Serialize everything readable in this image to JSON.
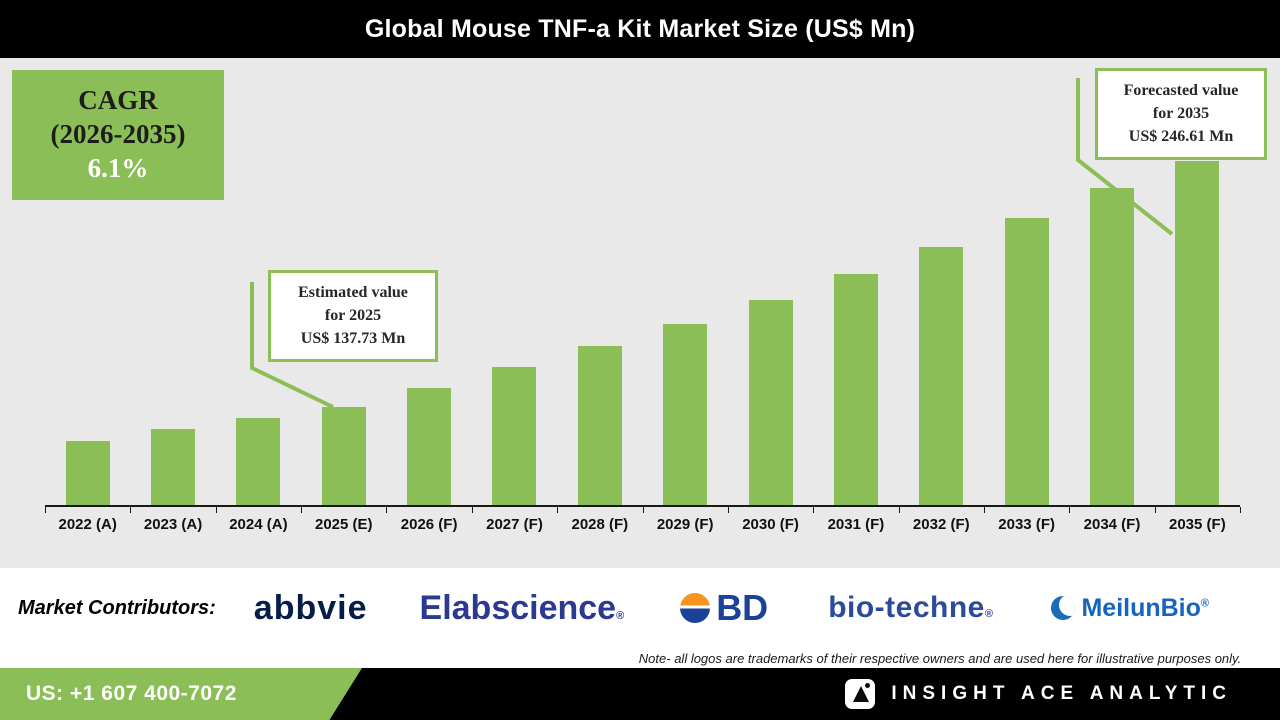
{
  "header": {
    "title": "Global Mouse TNF-a Kit Market Size (US$ Mn)"
  },
  "cagr_box": {
    "line1": "CAGR",
    "line2": "(2026-2035)",
    "value": "6.1%"
  },
  "callouts": {
    "estimated": {
      "line1": "Estimated value",
      "line2": "for 2025",
      "line3": "US$ 137.73 Mn"
    },
    "forecasted": {
      "line1": "Forecasted value",
      "line2": "for 2035",
      "line3": "US$ 246.61 Mn"
    }
  },
  "chart_data": {
    "type": "bar",
    "title": "Global Mouse TNF-a Kit Market Size (US$ Mn)",
    "categories": [
      "2022 (A)",
      "2023 (A)",
      "2024 (A)",
      "2025 (E)",
      "2026 (F)",
      "2027 (F)",
      "2028 (F)",
      "2029 (F)",
      "2030 (F)",
      "2031 (F)",
      "2032 (F)",
      "2033 (F)",
      "2034 (F)",
      "2035 (F)"
    ],
    "values": [
      122.2,
      127.9,
      132.8,
      137.73,
      146.13,
      155.04,
      164.5,
      174.53,
      185.18,
      196.47,
      208.45,
      221.17,
      234.66,
      246.61
    ],
    "xlabel": "",
    "ylabel": "US$ Mn",
    "ylim": [
      94,
      256
    ],
    "bar_color": "#8cbe58",
    "grid": false,
    "legend": false,
    "cagr": "6.1%",
    "cagr_period": "2026-2035",
    "annotations": [
      {
        "target": "2025 (E)",
        "text": "Estimated value for 2025 US$ 137.73 Mn",
        "value": 137.73
      },
      {
        "target": "2035 (F)",
        "text": "Forecasted value for 2035 US$ 246.61 Mn",
        "value": 246.61
      }
    ]
  },
  "contributors": {
    "label": "Market Contributors:",
    "abbvie": "abbvie",
    "elabscience": "Elabscience",
    "elabscience_reg": "®",
    "bd": "BD",
    "biotechne": "bio-techne",
    "biotechne_reg": "®",
    "meilunbio": "MeilunBio",
    "meilunbio_reg": "®"
  },
  "note": "Note- all logos are trademarks of their respective owners and are used here for illustrative purposes only.",
  "footer": {
    "phone": "US: +1 607 400-7072",
    "brand": "INSIGHT ACE ANALYTIC"
  },
  "colors": {
    "accent_green": "#8cbe58",
    "header_bg": "#000000",
    "chart_bg": "#e9e9e9",
    "abbvie_navy": "#071d49",
    "elabscience_blue": "#2b3990",
    "bd_blue": "#1b4298",
    "biotechne_blue": "#2b4b9b",
    "meilunbio_blue": "#1565c0"
  }
}
